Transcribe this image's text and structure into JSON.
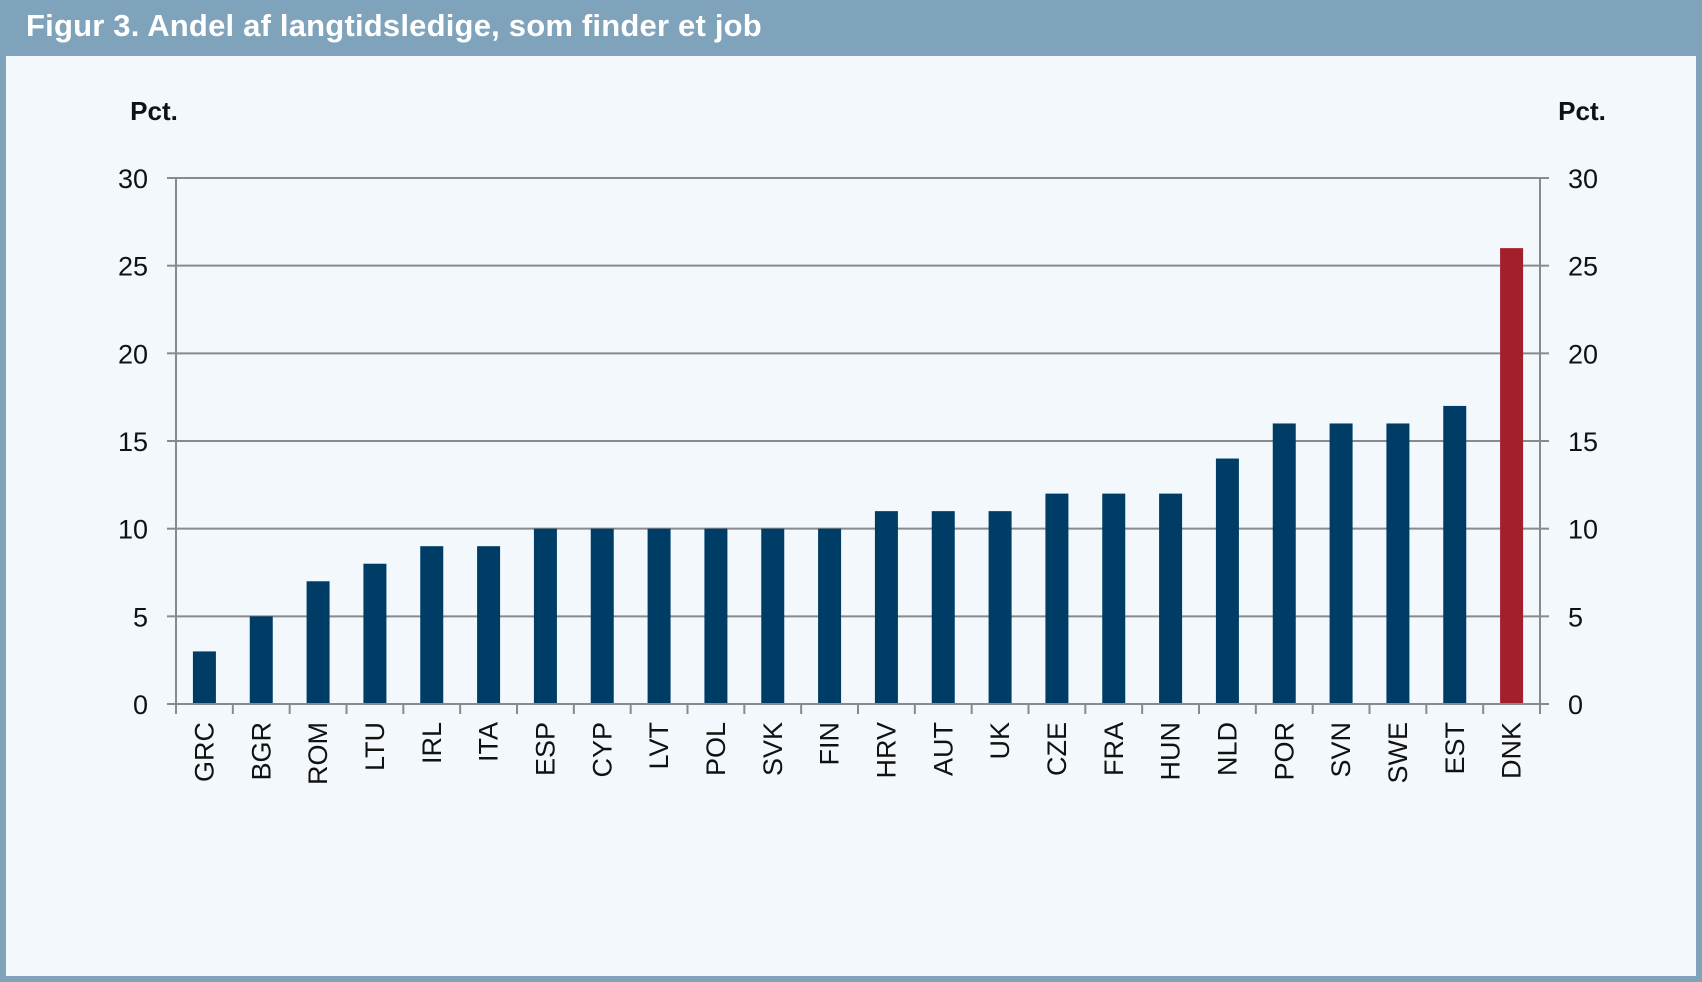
{
  "title": "Figur 3. Andel af langtidsledige, som finder et job",
  "colors": {
    "background_frame": "#7fa3bb",
    "panel": "#f2f8fc",
    "bar": "#003d66",
    "highlight_bar": "#a3202a",
    "gridline": "#8a8a8a"
  },
  "chart_data": {
    "type": "bar",
    "title": "",
    "ylabel_left": "Pct.",
    "ylabel_right": "Pct.",
    "ylim": [
      0,
      30
    ],
    "yticks": [
      0,
      5,
      10,
      15,
      20,
      25,
      30
    ],
    "grid": true,
    "categories": [
      "GRC",
      "BGR",
      "ROM",
      "LTU",
      "IRL",
      "ITA",
      "ESP",
      "CYP",
      "LVT",
      "POL",
      "SVK",
      "FIN",
      "HRV",
      "AUT",
      "UK",
      "CZE",
      "FRA",
      "HUN",
      "NLD",
      "POR",
      "SVN",
      "SWE",
      "EST",
      "DNK"
    ],
    "values": [
      3,
      5,
      7,
      8,
      9,
      9,
      10,
      10,
      10,
      10,
      10,
      10,
      11,
      11,
      11,
      12,
      12,
      12,
      14,
      16,
      16,
      16,
      17,
      26
    ],
    "highlight": "DNK"
  }
}
